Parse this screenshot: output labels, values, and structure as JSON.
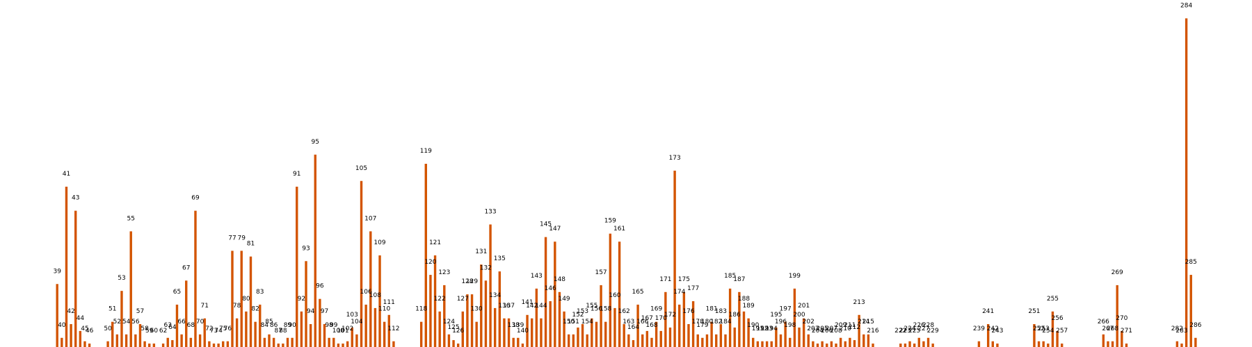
{
  "chart_data": {
    "type": "bar",
    "bar_color": "#d35400",
    "background": "#ffffff",
    "axes_visible": false,
    "grid": false,
    "legend": false,
    "ylim": [
      0,
      290
    ],
    "points": [
      {
        "x": 39,
        "y": 55
      },
      {
        "x": 40,
        "y": 8
      },
      {
        "x": 41,
        "y": 140
      },
      {
        "x": 42,
        "y": 20
      },
      {
        "x": 43,
        "y": 119
      },
      {
        "x": 44,
        "y": 14
      },
      {
        "x": 45,
        "y": 5
      },
      {
        "x": 46,
        "y": 3
      },
      {
        "x": 50,
        "y": 5
      },
      {
        "x": 51,
        "y": 22
      },
      {
        "x": 52,
        "y": 11
      },
      {
        "x": 53,
        "y": 49
      },
      {
        "x": 54,
        "y": 11
      },
      {
        "x": 55,
        "y": 101
      },
      {
        "x": 56,
        "y": 11
      },
      {
        "x": 57,
        "y": 20
      },
      {
        "x": 58,
        "y": 5
      },
      {
        "x": 59,
        "y": 3
      },
      {
        "x": 60,
        "y": 3
      },
      {
        "x": 62,
        "y": 3
      },
      {
        "x": 63,
        "y": 8
      },
      {
        "x": 64,
        "y": 6
      },
      {
        "x": 65,
        "y": 37
      },
      {
        "x": 66,
        "y": 11
      },
      {
        "x": 67,
        "y": 58
      },
      {
        "x": 68,
        "y": 8
      },
      {
        "x": 69,
        "y": 119
      },
      {
        "x": 70,
        "y": 11
      },
      {
        "x": 71,
        "y": 25
      },
      {
        "x": 72,
        "y": 5
      },
      {
        "x": 73,
        "y": 3
      },
      {
        "x": 74,
        "y": 3
      },
      {
        "x": 75,
        "y": 5
      },
      {
        "x": 76,
        "y": 5
      },
      {
        "x": 77,
        "y": 84
      },
      {
        "x": 78,
        "y": 25
      },
      {
        "x": 79,
        "y": 84
      },
      {
        "x": 80,
        "y": 31
      },
      {
        "x": 81,
        "y": 79
      },
      {
        "x": 82,
        "y": 22
      },
      {
        "x": 83,
        "y": 37
      },
      {
        "x": 84,
        "y": 8
      },
      {
        "x": 85,
        "y": 11
      },
      {
        "x": 86,
        "y": 8
      },
      {
        "x": 87,
        "y": 3
      },
      {
        "x": 88,
        "y": 3
      },
      {
        "x": 89,
        "y": 8
      },
      {
        "x": 90,
        "y": 8
      },
      {
        "x": 91,
        "y": 140
      },
      {
        "x": 92,
        "y": 31
      },
      {
        "x": 93,
        "y": 75
      },
      {
        "x": 94,
        "y": 20
      },
      {
        "x": 95,
        "y": 168
      },
      {
        "x": 96,
        "y": 42
      },
      {
        "x": 97,
        "y": 20
      },
      {
        "x": 98,
        "y": 8
      },
      {
        "x": 99,
        "y": 8
      },
      {
        "x": 100,
        "y": 3
      },
      {
        "x": 101,
        "y": 3
      },
      {
        "x": 102,
        "y": 5
      },
      {
        "x": 103,
        "y": 17
      },
      {
        "x": 104,
        "y": 11
      },
      {
        "x": 105,
        "y": 145
      },
      {
        "x": 106,
        "y": 37
      },
      {
        "x": 107,
        "y": 101
      },
      {
        "x": 108,
        "y": 34
      },
      {
        "x": 109,
        "y": 80
      },
      {
        "x": 110,
        "y": 22
      },
      {
        "x": 111,
        "y": 28
      },
      {
        "x": 112,
        "y": 5
      },
      {
        "x": 118,
        "y": 22
      },
      {
        "x": 119,
        "y": 160
      },
      {
        "x": 120,
        "y": 63
      },
      {
        "x": 121,
        "y": 80
      },
      {
        "x": 122,
        "y": 31
      },
      {
        "x": 123,
        "y": 54
      },
      {
        "x": 124,
        "y": 11
      },
      {
        "x": 125,
        "y": 6
      },
      {
        "x": 126,
        "y": 3
      },
      {
        "x": 127,
        "y": 31
      },
      {
        "x": 128,
        "y": 46
      },
      {
        "x": 129,
        "y": 46
      },
      {
        "x": 130,
        "y": 22
      },
      {
        "x": 131,
        "y": 72
      },
      {
        "x": 132,
        "y": 58
      },
      {
        "x": 133,
        "y": 107
      },
      {
        "x": 134,
        "y": 34
      },
      {
        "x": 135,
        "y": 66
      },
      {
        "x": 136,
        "y": 25
      },
      {
        "x": 137,
        "y": 25
      },
      {
        "x": 138,
        "y": 8
      },
      {
        "x": 139,
        "y": 8
      },
      {
        "x": 140,
        "y": 3
      },
      {
        "x": 141,
        "y": 28
      },
      {
        "x": 142,
        "y": 25
      },
      {
        "x": 143,
        "y": 51
      },
      {
        "x": 144,
        "y": 25
      },
      {
        "x": 145,
        "y": 96
      },
      {
        "x": 146,
        "y": 40
      },
      {
        "x": 147,
        "y": 92
      },
      {
        "x": 148,
        "y": 48
      },
      {
        "x": 149,
        "y": 31
      },
      {
        "x": 150,
        "y": 11
      },
      {
        "x": 151,
        "y": 11
      },
      {
        "x": 152,
        "y": 17
      },
      {
        "x": 153,
        "y": 20
      },
      {
        "x": 154,
        "y": 11
      },
      {
        "x": 155,
        "y": 25
      },
      {
        "x": 156,
        "y": 22
      },
      {
        "x": 157,
        "y": 54
      },
      {
        "x": 158,
        "y": 22
      },
      {
        "x": 159,
        "y": 99
      },
      {
        "x": 160,
        "y": 34
      },
      {
        "x": 161,
        "y": 92
      },
      {
        "x": 162,
        "y": 20
      },
      {
        "x": 163,
        "y": 11
      },
      {
        "x": 164,
        "y": 6
      },
      {
        "x": 165,
        "y": 37
      },
      {
        "x": 166,
        "y": 11
      },
      {
        "x": 167,
        "y": 14
      },
      {
        "x": 168,
        "y": 8
      },
      {
        "x": 169,
        "y": 22
      },
      {
        "x": 170,
        "y": 14
      },
      {
        "x": 171,
        "y": 48
      },
      {
        "x": 172,
        "y": 17
      },
      {
        "x": 173,
        "y": 154
      },
      {
        "x": 174,
        "y": 37
      },
      {
        "x": 175,
        "y": 48
      },
      {
        "x": 176,
        "y": 20
      },
      {
        "x": 177,
        "y": 40
      },
      {
        "x": 178,
        "y": 11
      },
      {
        "x": 179,
        "y": 8
      },
      {
        "x": 180,
        "y": 11
      },
      {
        "x": 181,
        "y": 22
      },
      {
        "x": 182,
        "y": 11
      },
      {
        "x": 183,
        "y": 20
      },
      {
        "x": 184,
        "y": 11
      },
      {
        "x": 185,
        "y": 51
      },
      {
        "x": 186,
        "y": 17
      },
      {
        "x": 187,
        "y": 48
      },
      {
        "x": 188,
        "y": 31
      },
      {
        "x": 189,
        "y": 25
      },
      {
        "x": 190,
        "y": 8
      },
      {
        "x": 191,
        "y": 5
      },
      {
        "x": 192,
        "y": 5
      },
      {
        "x": 193,
        "y": 5
      },
      {
        "x": 194,
        "y": 5
      },
      {
        "x": 195,
        "y": 17
      },
      {
        "x": 196,
        "y": 11
      },
      {
        "x": 197,
        "y": 22
      },
      {
        "x": 198,
        "y": 8
      },
      {
        "x": 199,
        "y": 51
      },
      {
        "x": 200,
        "y": 17
      },
      {
        "x": 201,
        "y": 25
      },
      {
        "x": 202,
        "y": 11
      },
      {
        "x": 203,
        "y": 5
      },
      {
        "x": 204,
        "y": 3
      },
      {
        "x": 205,
        "y": 5
      },
      {
        "x": 206,
        "y": 3
      },
      {
        "x": 207,
        "y": 5
      },
      {
        "x": 208,
        "y": 3
      },
      {
        "x": 209,
        "y": 8
      },
      {
        "x": 210,
        "y": 5
      },
      {
        "x": 211,
        "y": 8
      },
      {
        "x": 212,
        "y": 6
      },
      {
        "x": 213,
        "y": 28
      },
      {
        "x": 214,
        "y": 11
      },
      {
        "x": 215,
        "y": 11
      },
      {
        "x": 216,
        "y": 3
      },
      {
        "x": 222,
        "y": 3
      },
      {
        "x": 223,
        "y": 3
      },
      {
        "x": 224,
        "y": 5
      },
      {
        "x": 225,
        "y": 3
      },
      {
        "x": 226,
        "y": 8
      },
      {
        "x": 227,
        "y": 5
      },
      {
        "x": 228,
        "y": 8
      },
      {
        "x": 229,
        "y": 3
      },
      {
        "x": 239,
        "y": 5
      },
      {
        "x": 241,
        "y": 20
      },
      {
        "x": 242,
        "y": 5
      },
      {
        "x": 243,
        "y": 3
      },
      {
        "x": 251,
        "y": 20
      },
      {
        "x": 252,
        "y": 5
      },
      {
        "x": 253,
        "y": 5
      },
      {
        "x": 254,
        "y": 3
      },
      {
        "x": 255,
        "y": 31
      },
      {
        "x": 256,
        "y": 14
      },
      {
        "x": 257,
        "y": 3
      },
      {
        "x": 266,
        "y": 11
      },
      {
        "x": 267,
        "y": 5
      },
      {
        "x": 268,
        "y": 5
      },
      {
        "x": 269,
        "y": 54
      },
      {
        "x": 270,
        "y": 14
      },
      {
        "x": 271,
        "y": 3
      },
      {
        "x": 282,
        "y": 5
      },
      {
        "x": 283,
        "y": 3
      },
      {
        "x": 284,
        "y": 287
      },
      {
        "x": 285,
        "y": 63
      },
      {
        "x": 286,
        "y": 8
      }
    ]
  }
}
